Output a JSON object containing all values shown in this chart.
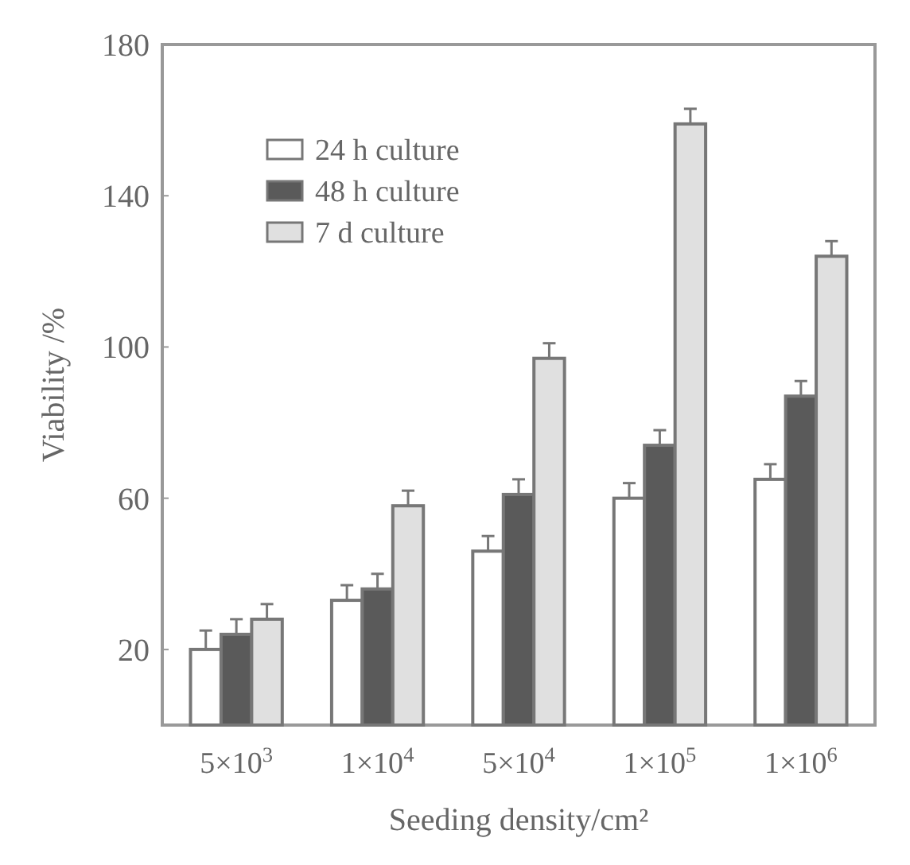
{
  "chart_data": {
    "type": "bar",
    "xlabel": "Seeding density/cm²",
    "ylabel": "Viability /%",
    "categories": [
      "5×10$^{3}$",
      "1×10$^{4}$",
      "5×10$^{4}$",
      "1×10$^{5}$",
      "1×10$^{6}$"
    ],
    "series": [
      {
        "name": "24 h culture",
        "color": "#ffffff",
        "values": [
          20,
          33,
          46,
          60,
          65
        ],
        "errors": [
          5,
          4,
          4,
          4,
          4
        ]
      },
      {
        "name": "48 h culture",
        "color": "#5a5a5a",
        "values": [
          24,
          36,
          61,
          74,
          87
        ],
        "errors": [
          4,
          4,
          4,
          4,
          4
        ]
      },
      {
        "name": "7 d culture",
        "color": "#e0e0e0",
        "values": [
          28,
          58,
          97,
          159,
          124
        ],
        "errors": [
          4,
          4,
          4,
          4,
          4
        ]
      }
    ],
    "ylim": [
      0,
      180
    ],
    "yticks": [
      20,
      60,
      100,
      140,
      180
    ],
    "legend": "top left",
    "grid": false
  }
}
